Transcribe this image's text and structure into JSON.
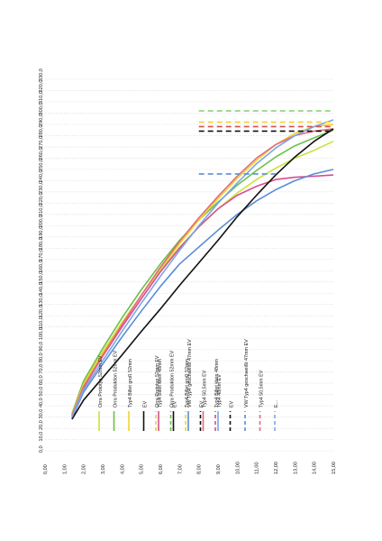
{
  "chart_data": {
    "type": "line",
    "orientation": "rotated-90-ccw",
    "title": "",
    "xlabel": "",
    "ylabel": "",
    "xlim": [
      0,
      15
    ],
    "ylim": [
      0,
      330
    ],
    "x_ticks": [
      "0,00",
      "1,00",
      "2,00",
      "3,00",
      "4,00",
      "5,00",
      "6,00",
      "7,00",
      "8,00",
      "9,00",
      "10,00",
      "11,00",
      "12,00",
      "13,00",
      "14,00",
      "15,00"
    ],
    "y_ticks": [
      "0,0",
      "10,0",
      "20,0",
      "30,0",
      "40,0",
      "50,0",
      "60,0",
      "70,0",
      "80,0",
      "90,0",
      "100,0",
      "110,0",
      "120,0",
      "130,0",
      "140,0",
      "150,0",
      "160,0",
      "170,0",
      "180,0",
      "190,0",
      "200,0",
      "210,0",
      "220,0",
      "230,0",
      "240,0",
      "250,0",
      "260,0",
      "270,0",
      "280,0",
      "290,0",
      "300,0",
      "310,0",
      "320,0",
      "330,0"
    ],
    "grid": true,
    "legend_position": "center",
    "legend_columns": [
      [
        "Orra Prototyp 52mm EV",
        "Orra Produktion 52mm EV",
        "Typ4 Billet groß 52mm",
        "EV",
        "Typ4 Billet klein 48mm",
        "EV",
        "VW Typ4 geschweißt 47mm EV",
        "Typ4 50,5mm EV",
        "Typ4 48mm EV"
      ],
      [
        "Orra Prototyp 52mm EV",
        "Orra Produktion 52mm EV",
        "Typ4 Billet groß 52mm",
        "EV",
        "Typ4 Billet klein 48mm",
        "EV",
        "VW Typ4 geschweißt 47mm EV",
        "Typ4 50,5mm EV",
        "E..."
      ]
    ],
    "series": [
      {
        "color": "#c8e23c",
        "dash": false,
        "x": [
          1.4,
          2,
          3,
          4,
          5,
          6,
          7,
          8,
          9,
          10,
          11,
          12,
          13,
          14,
          15
        ],
        "y": [
          32,
          60,
          88,
          114,
          138,
          161,
          181,
          199,
          215,
          229,
          241,
          251,
          260,
          267,
          275
        ]
      },
      {
        "color": "#6cc04a",
        "dash": false,
        "x": [
          1.4,
          2,
          3,
          4,
          5,
          6,
          7,
          8,
          9,
          10,
          11,
          12,
          13,
          14,
          15
        ],
        "y": [
          33,
          62,
          91,
          118,
          143,
          166,
          187,
          205,
          221,
          236,
          249,
          261,
          271,
          278,
          285
        ]
      },
      {
        "color": "#f2d22e",
        "dash": false,
        "x": [
          1.4,
          2,
          3,
          4,
          5,
          6,
          7,
          8,
          9,
          10,
          11,
          12,
          13,
          14,
          15
        ],
        "y": [
          32,
          59,
          87,
          113,
          138,
          162,
          184,
          205,
          224,
          242,
          258,
          272,
          282,
          288,
          290
        ]
      },
      {
        "color": "#d64e93",
        "dash": false,
        "x": [
          1.4,
          2,
          3,
          4,
          5,
          6,
          7,
          8,
          9,
          10,
          11,
          12,
          13,
          14,
          15
        ],
        "y": [
          31,
          56,
          84,
          110,
          135,
          159,
          180,
          199,
          215,
          227,
          235,
          241,
          243,
          244,
          245
        ]
      },
      {
        "color": "#e26a7d",
        "dash": false,
        "x": [
          1.4,
          2,
          3,
          4,
          5,
          6,
          7,
          8,
          9,
          10,
          11,
          12,
          13,
          14,
          15
        ],
        "y": [
          31,
          57,
          85,
          112,
          138,
          163,
          186,
          207,
          226,
          244,
          260,
          272,
          280,
          284,
          286
        ]
      },
      {
        "color": "#5b8ed6",
        "dash": false,
        "x": [
          1.4,
          2,
          3,
          4,
          5,
          6,
          7,
          8,
          9,
          10,
          11,
          12,
          13,
          14,
          15
        ],
        "y": [
          29,
          52,
          77,
          101,
          124,
          146,
          166,
          181,
          196,
          210,
          222,
          232,
          240,
          246,
          250
        ]
      },
      {
        "color": "#111111",
        "dash": false,
        "x": [
          1.4,
          2,
          3,
          4,
          5,
          6,
          7,
          8,
          9,
          10,
          11,
          12,
          13,
          14,
          15
        ],
        "y": [
          28,
          45,
          65,
          85,
          106,
          126,
          147,
          167,
          187,
          208,
          227,
          245,
          261,
          275,
          286
        ]
      },
      {
        "color": "#7ca6e6",
        "dash": false,
        "x": [
          1.4,
          2,
          3,
          4,
          5,
          6,
          7,
          8,
          9,
          10,
          11,
          12,
          13,
          14,
          15
        ],
        "y": [
          30,
          54,
          80,
          106,
          131,
          155,
          178,
          200,
          220,
          238,
          255,
          269,
          280,
          288,
          294
        ]
      },
      {
        "color": "#7fd06a",
        "dash": true,
        "x": [
          8,
          15
        ],
        "y": [
          302,
          302
        ]
      },
      {
        "color": "#f2d22e",
        "dash": true,
        "x": [
          8,
          15
        ],
        "y": [
          292,
          292
        ]
      },
      {
        "color": "#d64e4e",
        "dash": true,
        "x": [
          8,
          15
        ],
        "y": [
          288,
          288
        ]
      },
      {
        "color": "#111111",
        "dash": true,
        "x": [
          8,
          15
        ],
        "y": [
          284,
          284
        ]
      },
      {
        "color": "#5b8ed6",
        "dash": true,
        "x": [
          8,
          12
        ],
        "y": [
          246,
          246
        ]
      }
    ]
  }
}
